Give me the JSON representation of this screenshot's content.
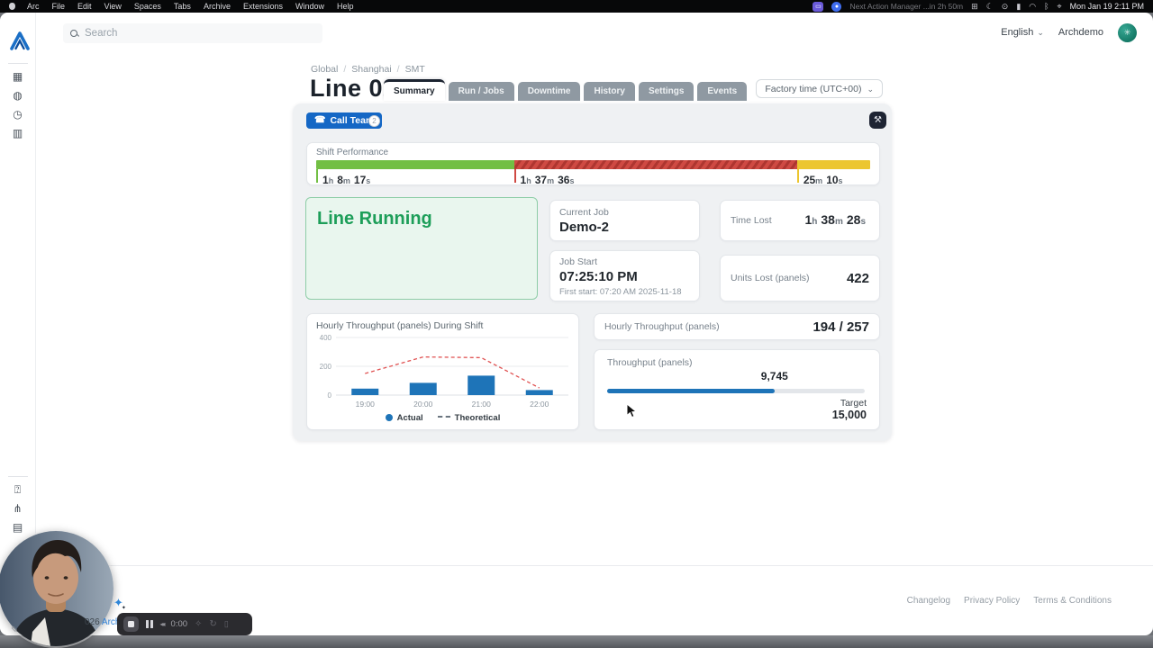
{
  "menubar": {
    "items": [
      "Arc",
      "File",
      "Edit",
      "View",
      "Spaces",
      "Tabs",
      "Archive",
      "Extensions",
      "Window",
      "Help"
    ],
    "status_text": "Next Action Manager ...in 2h 50m",
    "status_icons": [
      "⊞",
      "☾",
      "⊙",
      "▮",
      "◠",
      "ᛒ",
      "⌖"
    ],
    "clock": "Mon Jan 19 2:11 PM"
  },
  "header": {
    "search_placeholder": "Search",
    "language": "English",
    "account": "Archdemo"
  },
  "sidebar": {
    "top_icons": [
      {
        "name": "grid-icon",
        "glyph": "▦"
      },
      {
        "name": "bulb-icon",
        "glyph": "◍"
      },
      {
        "name": "timer-icon",
        "glyph": "◷"
      },
      {
        "name": "columns-icon",
        "glyph": "▥"
      }
    ],
    "bottom_icons": [
      {
        "name": "help-icon",
        "glyph": "⍰"
      },
      {
        "name": "share-icon",
        "glyph": "⋔"
      },
      {
        "name": "library-icon",
        "glyph": "▤"
      }
    ]
  },
  "page": {
    "breadcrumb": [
      "Global",
      "Shanghai",
      "SMT"
    ],
    "title": "Line 02",
    "tabs": [
      {
        "label": "Summary",
        "active": true
      },
      {
        "label": "Run / Jobs",
        "active": false
      },
      {
        "label": "Downtime",
        "active": false
      },
      {
        "label": "History",
        "active": false
      },
      {
        "label": "Settings",
        "active": false
      },
      {
        "label": "Events",
        "active": false
      }
    ],
    "timezone_selector": "Factory time (UTC+00)"
  },
  "panel": {
    "call_team_label": "Call Team",
    "call_team_badge": "2",
    "shift_performance": {
      "label": "Shift Performance",
      "segments": [
        {
          "status": "running",
          "color": "#72bf44",
          "hatched": false,
          "duration": "1h 8m 17s",
          "percent": 35.7
        },
        {
          "status": "down",
          "color": "#cf4a43",
          "hatched": true,
          "duration": "1h 37m 36s",
          "percent": 51.1
        },
        {
          "status": "idle",
          "color": "#ecc62f",
          "hatched": false,
          "duration": "25m 10s",
          "percent": 13.2
        }
      ]
    },
    "line_status": {
      "label": "Line Running",
      "bg": "#e9f6ee",
      "border": "#8ecda7",
      "color": "#1d9e59"
    },
    "current_job": {
      "label": "Current Job",
      "value": "Demo-2"
    },
    "job_start": {
      "label": "Job Start",
      "value": "07:25:10 PM",
      "subtext": "First start: 07:20 AM 2025-11-18"
    },
    "time_lost": {
      "label": "Time Lost",
      "value": "1h 38m 28s"
    },
    "units_lost": {
      "label": "Units Lost (panels)",
      "value": "422"
    },
    "hourly_throughput": {
      "label": "Hourly Throughput (panels)",
      "value": "194 / 257"
    },
    "throughput": {
      "label": "Throughput (panels)",
      "value": 9745,
      "value_display": "9,745",
      "target": 15000,
      "target_label": "Target",
      "target_display": "15,000"
    }
  },
  "chart_data": {
    "type": "bar",
    "title": "Hourly Throughput (panels) During Shift",
    "categories": [
      "19:00",
      "20:00",
      "21:00",
      "22:00"
    ],
    "series": [
      {
        "name": "Actual",
        "type": "bar",
        "color": "#1e74b8",
        "values": [
          45,
          85,
          135,
          35
        ]
      },
      {
        "name": "Theoretical",
        "type": "line",
        "style": "dashed",
        "color": "#e05252",
        "values": [
          150,
          265,
          260,
          50
        ]
      }
    ],
    "ylim": [
      0,
      400
    ],
    "yticks": [
      0,
      200,
      400
    ],
    "grid": true,
    "legend_position": "bottom"
  },
  "footer": {
    "links": [
      "Changelog",
      "Privacy Policy",
      "Terms & Conditions"
    ],
    "copyright_fragment_dark": "026 ",
    "copyright_fragment_link": "Arch S"
  },
  "recorder": {
    "time": "0:00"
  }
}
